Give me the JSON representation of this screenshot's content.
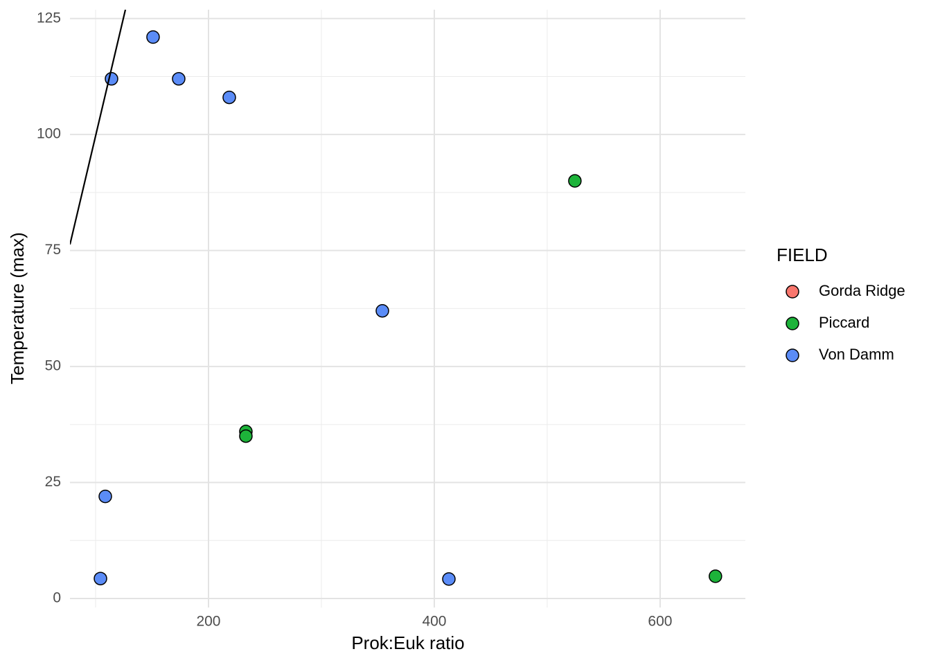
{
  "chart_data": {
    "type": "scatter",
    "x_label": "Prok:Euk ratio",
    "y_label": "Temperature (max)",
    "legend_title": "FIELD",
    "legend_position": "right",
    "xlim": [
      77.3,
      675.5
    ],
    "ylim": [
      -1.94,
      126.9
    ],
    "xticks": [
      200,
      400,
      600
    ],
    "yticks": [
      0,
      25,
      50,
      75,
      100,
      125
    ],
    "x_minor_grid": [
      100,
      300,
      500
    ],
    "y_minor_grid": [
      12.5,
      37.5,
      62.5,
      87.5,
      112.5
    ],
    "grid": true,
    "series": [
      {
        "name": "Gorda Ridge",
        "color": "#F8766D",
        "x": [],
        "values": []
      },
      {
        "name": "Piccard",
        "color": "#1DB33A",
        "x": [
          233.1,
          233.1,
          524.5,
          649
        ],
        "values": [
          36,
          35,
          90,
          4.8
        ]
      },
      {
        "name": "Von Damm",
        "color": "#5B8CF7",
        "x": [
          114.1,
          150.9,
          173.6,
          218.4,
          354,
          108.6,
          104.3,
          412.9
        ],
        "values": [
          112,
          121,
          112,
          108,
          62,
          22,
          4.3,
          4.2
        ]
      }
    ],
    "line": {
      "color": "#000000",
      "x": [
        77.3,
        126.4
      ],
      "values": [
        76.3,
        126.9
      ]
    }
  }
}
